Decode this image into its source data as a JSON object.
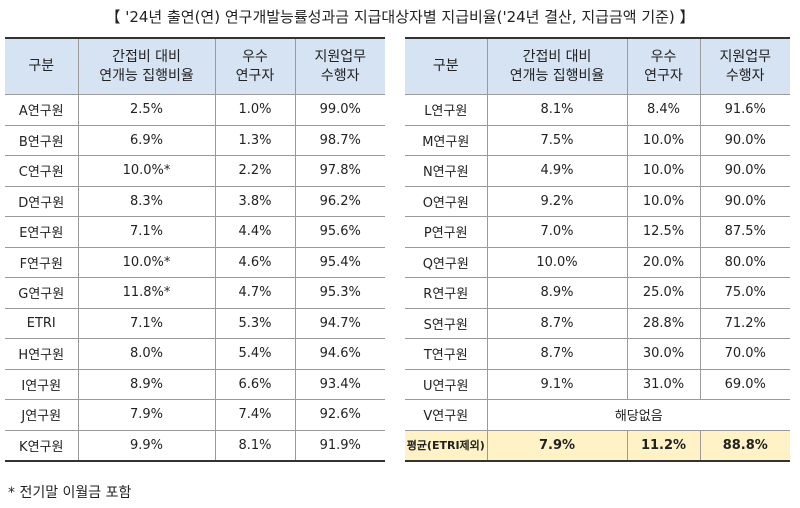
{
  "title": "【 '24년 출연(연) 연구개발능률성과금 지급대상자별 지급비율('24년 결산, 지급금액 기준) 】",
  "tables": [
    {
      "header": [
        "구분",
        "간접비 대비\n연개능 집행비율",
        "우수\n연구자",
        "지원업무\n수행자"
      ],
      "rows": [
        [
          "A연구원",
          "2.5%",
          "1.0%",
          "99.0%"
        ],
        [
          "B연구원",
          "6.9%",
          "1.3%",
          "98.7%"
        ],
        [
          "C연구원",
          "10.0%*",
          "2.2%",
          "97.8%"
        ],
        [
          "D연구원",
          "8.3%",
          "3.8%",
          "96.2%"
        ],
        [
          "E연구원",
          "7.1%",
          "4.4%",
          "95.6%"
        ],
        [
          "F연구원",
          "10.0%*",
          "4.6%",
          "95.4%"
        ],
        [
          "G연구원",
          "11.8%*",
          "4.7%",
          "95.3%"
        ],
        [
          "ETRI",
          "7.1%",
          "5.3%",
          "94.7%"
        ],
        [
          "H연구원",
          "8.0%",
          "5.4%",
          "94.6%"
        ],
        [
          "I연구원",
          "8.9%",
          "6.6%",
          "93.4%"
        ],
        [
          "J연구원",
          "7.9%",
          "7.4%",
          "92.6%"
        ],
        [
          "K연구원",
          "9.9%",
          "8.1%",
          "91.9%"
        ]
      ]
    },
    {
      "header": [
        "구분",
        "간접비 대비\n연개능 집행비율",
        "우수\n연구자",
        "지원업무\n수행자"
      ],
      "rows": [
        [
          "L연구원",
          "8.1%",
          "8.4%",
          "91.6%"
        ],
        [
          "M연구원",
          "7.5%",
          "10.0%",
          "90.0%"
        ],
        [
          "N연구원",
          "4.9%",
          "10.0%",
          "90.0%"
        ],
        [
          "O연구원",
          "9.2%",
          "10.0%",
          "90.0%"
        ],
        [
          "P연구원",
          "7.0%",
          "12.5%",
          "87.5%"
        ],
        [
          "Q연구원",
          "10.0%",
          "20.0%",
          "80.0%"
        ],
        [
          "R연구원",
          "8.9%",
          "25.0%",
          "75.0%"
        ],
        [
          "S연구원",
          "8.7%",
          "28.8%",
          "71.2%"
        ],
        [
          "T연구원",
          "8.7%",
          "30.0%",
          "70.0%"
        ],
        [
          "U연구원",
          "9.1%",
          "31.0%",
          "69.0%"
        ],
        [
          "V연구원",
          "해당없음"
        ],
        [
          "평균(ETRI제외)",
          "7.9%",
          "11.2%",
          "88.8%"
        ]
      ]
    }
  ],
  "footnote": "* 전기말 이월금 포함"
}
